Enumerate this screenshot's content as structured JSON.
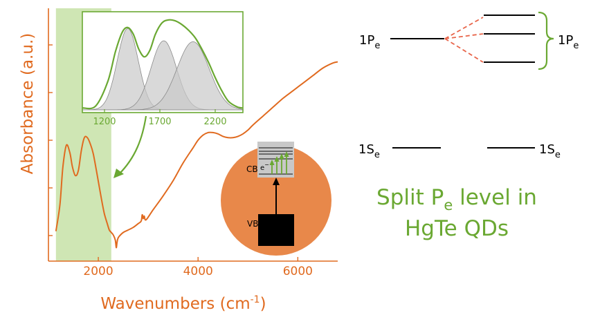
{
  "chart_data": {
    "type": "line",
    "xlabel": "Wavenumbers (cm",
    "xlabel_sup": "-1",
    "xlabel_end": ")",
    "ylabel": "Absorbance (a.u.)",
    "xlim": [
      1000,
      6800
    ],
    "xticks": [
      2000,
      4000,
      6000
    ],
    "xtick_labels": [
      "2000",
      "4000",
      "6000"
    ],
    "grid": false,
    "series": [
      {
        "x": [
          1150,
          1230,
          1290,
          1360,
          1430,
          1480,
          1540,
          1600,
          1660,
          1720,
          1780,
          1840,
          1900,
          1980,
          2060,
          2120,
          2180,
          2220,
          2260,
          2300,
          2340,
          2360,
          2375,
          2390,
          2420,
          2500,
          2600,
          2700,
          2800,
          2860,
          2880,
          2900,
          2920,
          2940,
          2980,
          3100,
          3300,
          3500,
          3700,
          3900,
          4000,
          4100,
          4200,
          4300,
          4400,
          4500,
          4600,
          4700,
          4800,
          4900,
          5000,
          5100,
          5300,
          5500,
          5700,
          5900,
          6100,
          6300,
          6500,
          6700,
          6800
        ],
        "y": [
          0.04,
          0.25,
          0.55,
          0.72,
          0.66,
          0.55,
          0.48,
          0.52,
          0.68,
          0.78,
          0.78,
          0.73,
          0.65,
          0.48,
          0.3,
          0.18,
          0.1,
          0.05,
          0.03,
          0.01,
          -0.03,
          -0.09,
          -0.05,
          -0.02,
          0.0,
          0.03,
          0.05,
          0.07,
          0.1,
          0.12,
          0.17,
          0.14,
          0.16,
          0.13,
          0.14,
          0.21,
          0.32,
          0.44,
          0.58,
          0.7,
          0.76,
          0.8,
          0.82,
          0.82,
          0.81,
          0.79,
          0.78,
          0.78,
          0.79,
          0.81,
          0.84,
          0.88,
          0.95,
          1.02,
          1.09,
          1.15,
          1.21,
          1.27,
          1.33,
          1.37,
          1.38
        ]
      }
    ],
    "highlight_band_x": [
      1150,
      2260
    ],
    "inset": {
      "xlim": [
        1000,
        2450
      ],
      "xticks": [
        1200,
        1700,
        2200
      ],
      "xtick_labels": [
        "1200",
        "1700",
        "2200"
      ],
      "gaussians": [
        {
          "center": 1410,
          "sigma": 95,
          "height": 0.86
        },
        {
          "center": 1735,
          "sigma": 115,
          "height": 0.73
        },
        {
          "center": 2000,
          "sigma": 145,
          "height": 0.72
        }
      ],
      "envelope": {
        "x": [
          1000,
          1120,
          1230,
          1300,
          1360,
          1410,
          1460,
          1510,
          1560,
          1610,
          1660,
          1720,
          1780,
          1840,
          1900,
          1960,
          2020,
          2080,
          2140,
          2200,
          2260,
          2320,
          2400,
          2450
        ],
        "y": [
          0.02,
          0.04,
          0.3,
          0.62,
          0.82,
          0.87,
          0.8,
          0.64,
          0.56,
          0.63,
          0.8,
          0.92,
          0.95,
          0.94,
          0.9,
          0.84,
          0.76,
          0.64,
          0.5,
          0.34,
          0.2,
          0.09,
          0.03,
          0.02
        ]
      }
    }
  },
  "band_diagram": {
    "cb_label": "CB",
    "vb_label": "VB",
    "electron_label": "e",
    "electron_sup": "−"
  },
  "level_diagram": {
    "p_left": {
      "main": "1P",
      "sub": "e"
    },
    "p_right": {
      "main": "1P",
      "sub": "e"
    },
    "s_left": {
      "main": "1S",
      "sub": "e"
    },
    "s_right": {
      "main": "1S",
      "sub": "e"
    },
    "caption_line1_a": "Split P",
    "caption_line1_sub": "e",
    "caption_line1_b": " level in",
    "caption_line2": "HgTe QDs"
  },
  "colors": {
    "spectrum": "#e06a1f",
    "highlight": "#cfe6b4",
    "accent_green": "#6aa832",
    "split_dashes": "#e8654a",
    "circle": "#e8884a",
    "gauss_fill": "#c9c9c9"
  }
}
